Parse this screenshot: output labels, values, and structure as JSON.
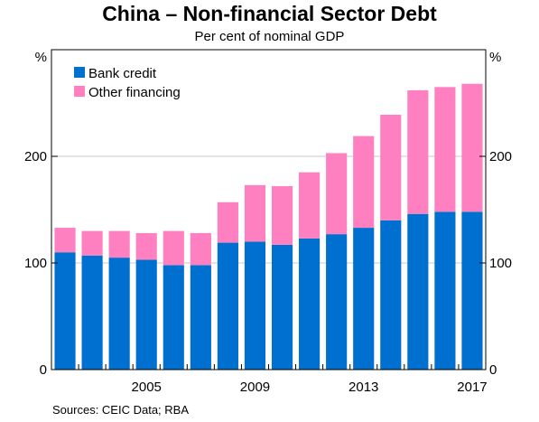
{
  "title": "China – Non-financial Sector Debt",
  "subtitle": "Per cent of nominal GDP",
  "sources": "Sources:   CEIC Data; RBA",
  "colors": {
    "bank": "#0070d0",
    "other": "#ff80c0"
  },
  "chart_data": {
    "type": "bar",
    "stacked": true,
    "title": "China – Non-financial Sector Debt",
    "subtitle": "Per cent of nominal GDP",
    "ylabel_left": "%",
    "ylabel_right": "%",
    "ylim": [
      0,
      300
    ],
    "yticks": [
      0,
      100,
      200
    ],
    "xticks": [
      "2005",
      "2009",
      "2013",
      "2017"
    ],
    "legend_position": "top-left",
    "grid": true,
    "categories": [
      "2002",
      "2003",
      "2004",
      "2005",
      "2006",
      "2007",
      "2008",
      "2009",
      "2010",
      "2011",
      "2012",
      "2013",
      "2014",
      "2015",
      "2016",
      "2017"
    ],
    "series": [
      {
        "name": "Bank credit",
        "values": [
          110,
          107,
          105,
          103,
          98,
          98,
          119,
          120,
          117,
          123,
          127,
          133,
          140,
          146,
          148,
          148
        ]
      },
      {
        "name": "Other financing",
        "values": [
          23,
          23,
          25,
          25,
          32,
          30,
          38,
          53,
          55,
          62,
          76,
          86,
          99,
          116,
          117,
          120
        ]
      }
    ]
  }
}
